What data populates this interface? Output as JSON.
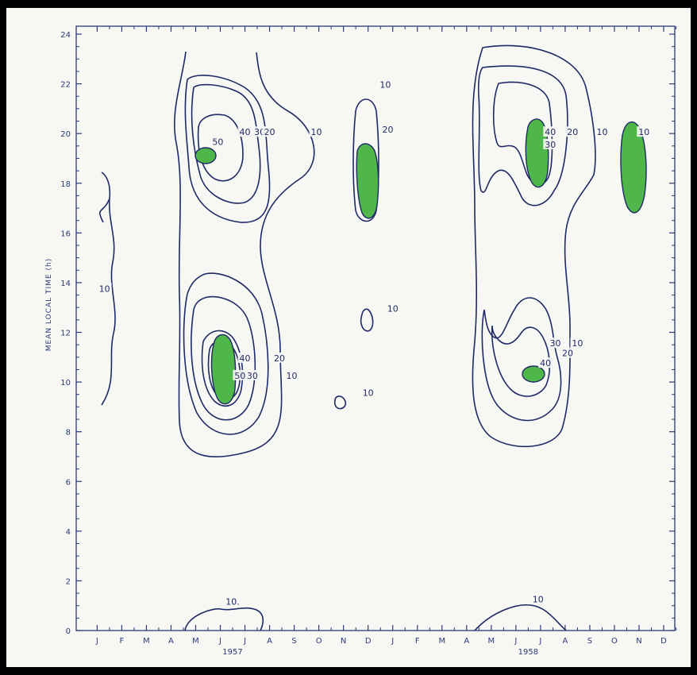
{
  "chart_data": {
    "type": "contour",
    "ylabel": "MEAN LOCAL TIME (h)",
    "y_ticks": [
      0,
      2,
      4,
      6,
      8,
      10,
      12,
      14,
      16,
      18,
      20,
      22,
      24
    ],
    "ylim": [
      0,
      24
    ],
    "x_month_labels": [
      "J",
      "F",
      "M",
      "A",
      "M",
      "J",
      "J",
      "A",
      "S",
      "O",
      "N",
      "D",
      "J",
      "F",
      "M",
      "A",
      "M",
      "J",
      "J",
      "A",
      "S",
      "O",
      "N",
      "D"
    ],
    "x_year_labels": [
      {
        "text": "1957",
        "under_month_index": 5.5
      },
      {
        "text": "1958",
        "under_month_index": 17.5
      }
    ],
    "contour_levels": [
      10,
      20,
      30,
      40,
      50
    ],
    "shaded_regions_color": "#4fb64a",
    "contour_labels": [
      {
        "text": "10",
        "month": 0.3,
        "hour": 13.7
      },
      {
        "text": "50",
        "month": 4.9,
        "hour": 19.6
      },
      {
        "text": "40",
        "month": 6.0,
        "hour": 20.0
      },
      {
        "text": "30",
        "month": 6.6,
        "hour": 20.0
      },
      {
        "text": "20",
        "month": 7.0,
        "hour": 20.0
      },
      {
        "text": "10",
        "month": 8.9,
        "hour": 20.0
      },
      {
        "text": "40",
        "month": 6.0,
        "hour": 10.9
      },
      {
        "text": "50",
        "month": 5.8,
        "hour": 10.2
      },
      {
        "text": "30",
        "month": 6.3,
        "hour": 10.2
      },
      {
        "text": "20",
        "month": 7.4,
        "hour": 10.9
      },
      {
        "text": "10",
        "month": 7.9,
        "hour": 10.2
      },
      {
        "text": "10",
        "month": 11.7,
        "hour": 21.9
      },
      {
        "text": "20",
        "month": 11.8,
        "hour": 20.1
      },
      {
        "text": "10",
        "month": 12.0,
        "hour": 12.9
      },
      {
        "text": "10",
        "month": 11.0,
        "hour": 9.5
      },
      {
        "text": "40",
        "month": 18.4,
        "hour": 20.0
      },
      {
        "text": "30",
        "month": 18.4,
        "hour": 19.5
      },
      {
        "text": "20",
        "month": 19.3,
        "hour": 20.0
      },
      {
        "text": "10",
        "month": 20.5,
        "hour": 20.0
      },
      {
        "text": "10",
        "month": 22.2,
        "hour": 20.0
      },
      {
        "text": "30",
        "month": 18.6,
        "hour": 11.5
      },
      {
        "text": "10",
        "month": 19.5,
        "hour": 11.5
      },
      {
        "text": "20",
        "month": 19.1,
        "hour": 11.1
      },
      {
        "text": "40",
        "month": 18.2,
        "hour": 10.7
      },
      {
        "text": "10.",
        "month": 5.5,
        "hour": 1.1
      },
      {
        "text": "10",
        "month": 17.9,
        "hour": 1.2
      }
    ]
  }
}
